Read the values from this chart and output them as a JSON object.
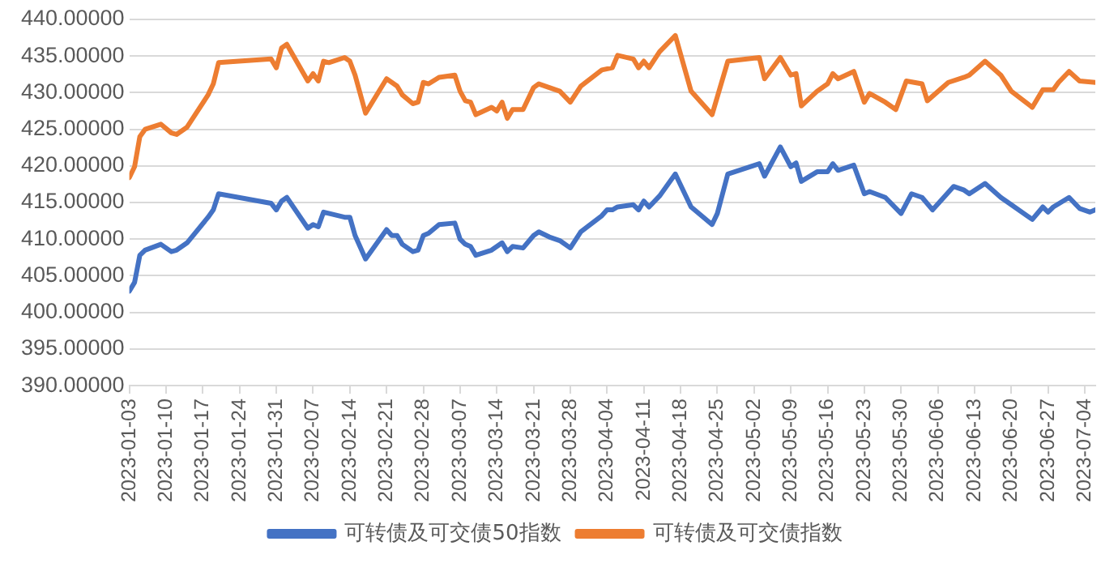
{
  "chart_data": {
    "type": "line",
    "legend": "bottom",
    "grid": "y",
    "marker": "none",
    "line_style": "solid",
    "xlim": [
      "2023-01-03",
      "2023-07-06"
    ],
    "xticks": [
      "2023-01-03",
      "2023-01-10",
      "2023-01-17",
      "2023-01-24",
      "2023-01-31",
      "2023-02-07",
      "2023-02-14",
      "2023-02-21",
      "2023-02-28",
      "2023-03-07",
      "2023-03-14",
      "2023-03-21",
      "2023-03-28",
      "2023-04-04",
      "2023-04-11",
      "2023-04-18",
      "2023-04-25",
      "2023-05-02",
      "2023-05-09",
      "2023-05-16",
      "2023-05-23",
      "2023-05-30",
      "2023-06-06",
      "2023-06-13",
      "2023-06-20",
      "2023-06-27",
      "2023-07-04"
    ],
    "ylim": [
      390,
      440
    ],
    "yticks": [
      {
        "value": 390,
        "label": "390.00000"
      },
      {
        "value": 395,
        "label": "395.00000"
      },
      {
        "value": 400,
        "label": "400.00000"
      },
      {
        "value": 405,
        "label": "405.00000"
      },
      {
        "value": 410,
        "label": "410.00000"
      },
      {
        "value": 415,
        "label": "415.00000"
      },
      {
        "value": 420,
        "label": "420.00000"
      },
      {
        "value": 425,
        "label": "425.00000"
      },
      {
        "value": 430,
        "label": "430.00000"
      },
      {
        "value": 435,
        "label": "435.00000"
      },
      {
        "value": 440,
        "label": "440.00000"
      }
    ],
    "series": [
      {
        "name": "可转债及可交债50指数",
        "color": "#4472c4",
        "x": [
          "2023-01-03",
          "2023-01-04",
          "2023-01-05",
          "2023-01-06",
          "2023-01-09",
          "2023-01-11",
          "2023-01-12",
          "2023-01-14",
          "2023-01-18",
          "2023-01-19",
          "2023-01-20",
          "2023-01-30",
          "2023-01-31",
          "2023-02-01",
          "2023-02-02",
          "2023-02-06",
          "2023-02-07",
          "2023-02-08",
          "2023-02-09",
          "2023-02-13",
          "2023-02-14",
          "2023-02-15",
          "2023-02-17",
          "2023-02-21",
          "2023-02-22",
          "2023-02-23",
          "2023-02-24",
          "2023-02-26",
          "2023-02-27",
          "2023-02-28",
          "2023-03-01",
          "2023-03-03",
          "2023-03-06",
          "2023-03-07",
          "2023-03-08",
          "2023-03-09",
          "2023-03-10",
          "2023-03-13",
          "2023-03-15",
          "2023-03-16",
          "2023-03-17",
          "2023-03-19",
          "2023-03-21",
          "2023-03-22",
          "2023-03-24",
          "2023-03-26",
          "2023-03-28",
          "2023-03-30",
          "2023-04-03",
          "2023-04-04",
          "2023-04-05",
          "2023-04-06",
          "2023-04-09",
          "2023-04-10",
          "2023-04-11",
          "2023-04-12",
          "2023-04-14",
          "2023-04-17",
          "2023-04-20",
          "2023-04-24",
          "2023-04-25",
          "2023-04-27",
          "2023-05-03",
          "2023-05-04",
          "2023-05-07",
          "2023-05-09",
          "2023-05-10",
          "2023-05-11",
          "2023-05-14",
          "2023-05-16",
          "2023-05-17",
          "2023-05-18",
          "2023-05-21",
          "2023-05-23",
          "2023-05-24",
          "2023-05-27",
          "2023-05-30",
          "2023-06-01",
          "2023-06-03",
          "2023-06-05",
          "2023-06-09",
          "2023-06-11",
          "2023-06-12",
          "2023-06-15",
          "2023-06-18",
          "2023-06-20",
          "2023-06-24",
          "2023-06-26",
          "2023-06-27",
          "2023-06-28",
          "2023-07-01",
          "2023-07-03",
          "2023-07-05",
          "2023-07-06"
        ],
        "values": [
          402.9,
          404.1,
          407.8,
          408.5,
          409.3,
          408.3,
          408.5,
          409.5,
          413.0,
          414.0,
          416.2,
          414.9,
          414.0,
          415.2,
          415.7,
          411.5,
          412.0,
          411.7,
          413.7,
          413.0,
          413.0,
          410.5,
          407.3,
          411.3,
          410.5,
          410.5,
          409.3,
          408.3,
          408.5,
          410.5,
          410.8,
          412.0,
          412.2,
          410.0,
          409.3,
          409.0,
          407.8,
          408.5,
          409.5,
          408.3,
          409.0,
          408.8,
          410.5,
          411.0,
          410.3,
          409.8,
          408.8,
          411.0,
          413.2,
          414.0,
          414.0,
          414.4,
          414.7,
          414.0,
          415.2,
          414.4,
          415.9,
          418.9,
          414.4,
          412.0,
          413.5,
          418.9,
          420.3,
          418.6,
          422.6,
          419.9,
          420.4,
          417.9,
          419.2,
          419.2,
          420.3,
          419.4,
          420.1,
          416.2,
          416.5,
          415.7,
          413.5,
          416.2,
          415.7,
          414.0,
          417.2,
          416.7,
          416.2,
          417.6,
          415.7,
          414.7,
          412.7,
          414.4,
          413.7,
          414.4,
          415.7,
          414.2,
          413.7,
          414.0
        ]
      },
      {
        "name": "可转债及可交债指数",
        "color": "#ed7d31",
        "x": [
          "2023-01-03",
          "2023-01-04",
          "2023-01-05",
          "2023-01-06",
          "2023-01-09",
          "2023-01-11",
          "2023-01-12",
          "2023-01-14",
          "2023-01-18",
          "2023-01-19",
          "2023-01-20",
          "2023-01-30",
          "2023-01-31",
          "2023-02-01",
          "2023-02-02",
          "2023-02-06",
          "2023-02-07",
          "2023-02-08",
          "2023-02-09",
          "2023-02-10",
          "2023-02-13",
          "2023-02-14",
          "2023-02-15",
          "2023-02-17",
          "2023-02-21",
          "2023-02-23",
          "2023-02-24",
          "2023-02-26",
          "2023-02-27",
          "2023-02-28",
          "2023-03-01",
          "2023-03-03",
          "2023-03-06",
          "2023-03-07",
          "2023-03-08",
          "2023-03-09",
          "2023-03-10",
          "2023-03-13",
          "2023-03-14",
          "2023-03-15",
          "2023-03-16",
          "2023-03-17",
          "2023-03-19",
          "2023-03-21",
          "2023-03-22",
          "2023-03-24",
          "2023-03-26",
          "2023-03-28",
          "2023-03-30",
          "2023-04-03",
          "2023-04-05",
          "2023-04-06",
          "2023-04-09",
          "2023-04-10",
          "2023-04-11",
          "2023-04-12",
          "2023-04-14",
          "2023-04-17",
          "2023-04-20",
          "2023-04-24",
          "2023-04-27",
          "2023-05-03",
          "2023-05-04",
          "2023-05-07",
          "2023-05-09",
          "2023-05-10",
          "2023-05-11",
          "2023-05-14",
          "2023-05-16",
          "2023-05-17",
          "2023-05-18",
          "2023-05-21",
          "2023-05-23",
          "2023-05-24",
          "2023-05-27",
          "2023-05-29",
          "2023-05-31",
          "2023-06-03",
          "2023-06-04",
          "2023-06-08",
          "2023-06-11",
          "2023-06-12",
          "2023-06-15",
          "2023-06-18",
          "2023-06-20",
          "2023-06-24",
          "2023-06-26",
          "2023-06-28",
          "2023-06-29",
          "2023-07-01",
          "2023-07-03",
          "2023-07-06"
        ],
        "values": [
          418.4,
          419.9,
          424.0,
          425.0,
          425.7,
          424.5,
          424.3,
          425.3,
          429.7,
          431.2,
          434.1,
          434.6,
          433.4,
          436.1,
          436.6,
          431.6,
          432.6,
          431.6,
          434.3,
          434.1,
          434.8,
          434.3,
          432.4,
          427.2,
          431.9,
          430.9,
          429.7,
          428.5,
          428.7,
          431.4,
          431.2,
          432.1,
          432.4,
          430.2,
          428.9,
          428.7,
          427.0,
          428.0,
          427.5,
          428.7,
          426.5,
          427.7,
          427.7,
          430.7,
          431.2,
          430.7,
          430.2,
          428.7,
          430.9,
          433.1,
          433.4,
          435.1,
          434.6,
          433.4,
          434.3,
          433.4,
          435.6,
          437.8,
          430.2,
          427.0,
          434.3,
          434.8,
          431.9,
          434.8,
          432.4,
          432.6,
          428.2,
          430.2,
          431.2,
          432.6,
          431.9,
          432.9,
          428.7,
          429.9,
          428.7,
          427.7,
          431.6,
          431.2,
          428.9,
          431.4,
          432.1,
          432.4,
          434.3,
          432.4,
          430.2,
          428.0,
          430.4,
          430.4,
          431.4,
          432.9,
          431.6,
          431.4
        ]
      }
    ]
  }
}
